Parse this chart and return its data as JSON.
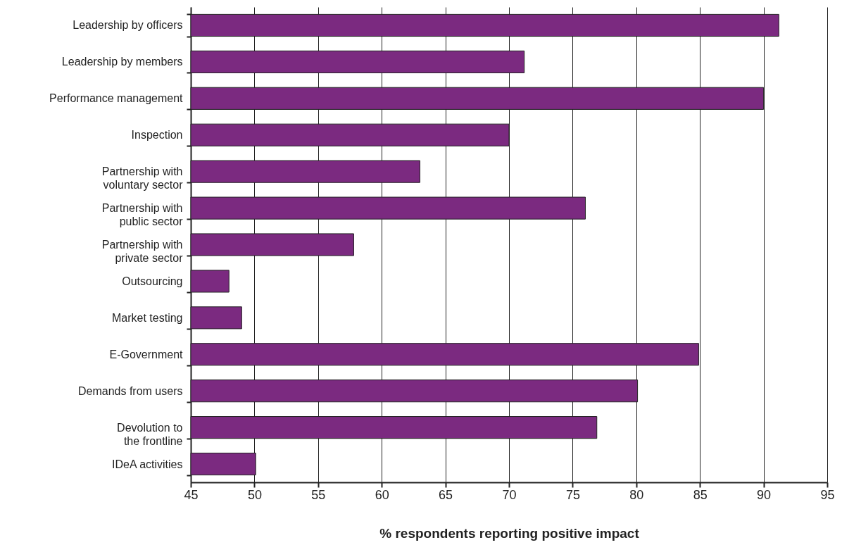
{
  "chart_data": {
    "type": "bar",
    "orientation": "horizontal",
    "xlabel": "% respondents reporting positive impact",
    "categories": [
      "Leadership by officers",
      "Leadership by members",
      "Performance management",
      "Inspection",
      "Partnership with\nvoluntary sector",
      "Partnership with\npublic sector",
      "Partnership with\nprivate sector",
      "Outsourcing",
      "Market testing",
      "E-Government",
      "Demands from users",
      "Devolution to\nthe frontline",
      "IDeA activities"
    ],
    "values": [
      91.2,
      71.2,
      90,
      70,
      63,
      76,
      57.8,
      48,
      49,
      84.9,
      80.1,
      76.9,
      50.1
    ],
    "color": "#7b2a80",
    "xlim": [
      45,
      95
    ],
    "xticks": [
      45,
      50,
      55,
      60,
      65,
      70,
      75,
      80,
      85,
      90,
      95
    ],
    "grid": "x"
  }
}
